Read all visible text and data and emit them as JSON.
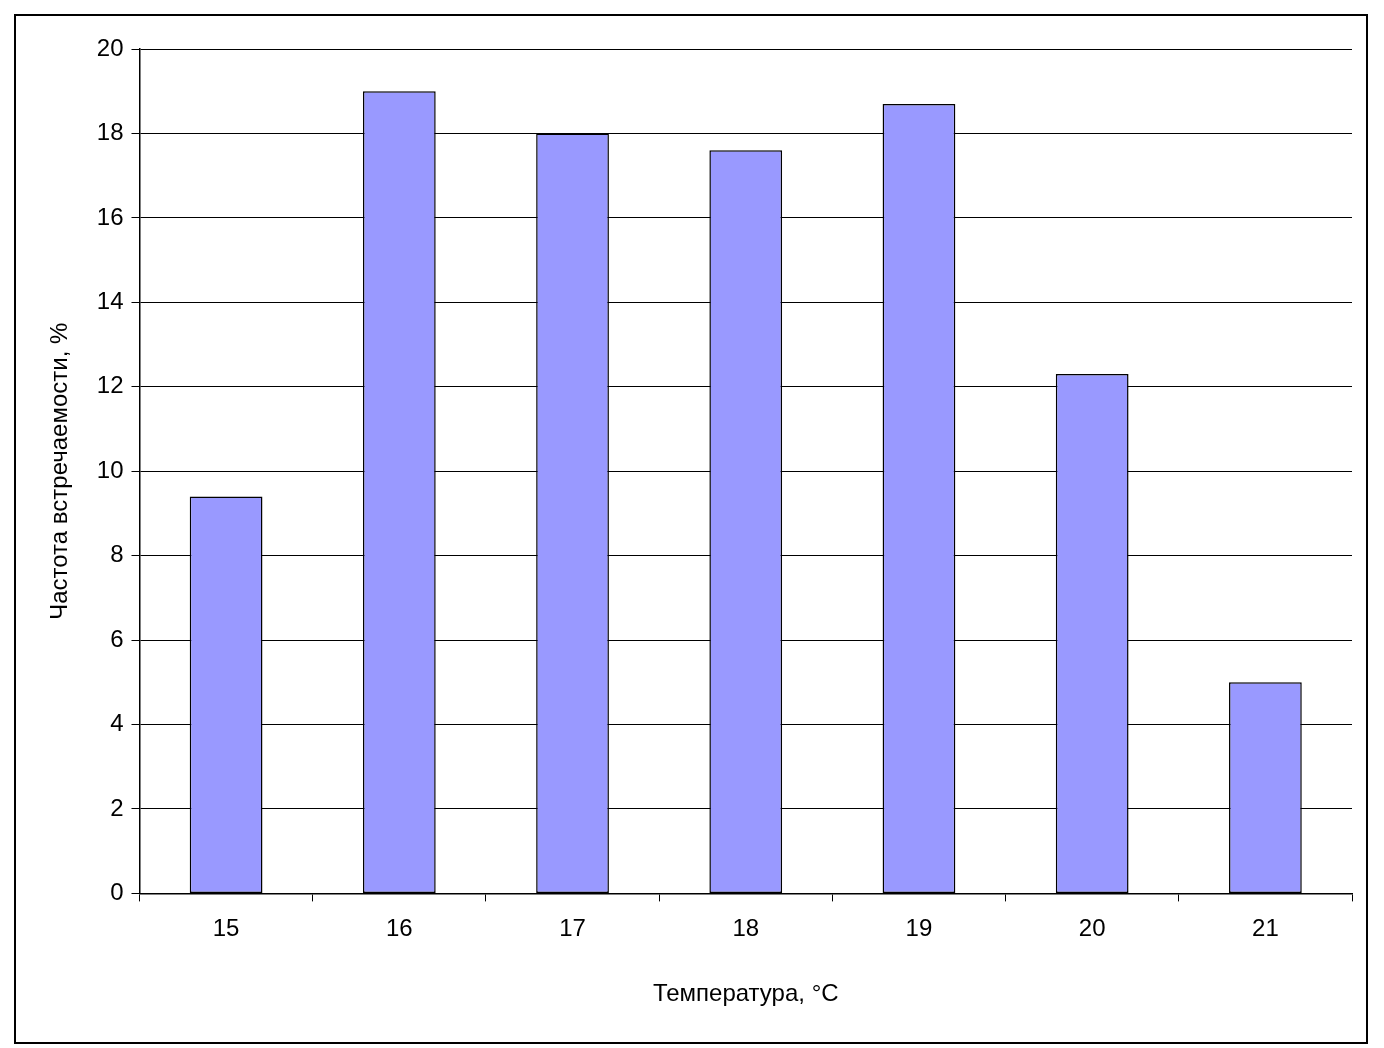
{
  "chart_data": {
    "type": "bar",
    "xlabel": "Температура, °C",
    "ylabel": "Частота встречаемости, %",
    "categories": [
      "15",
      "16",
      "17",
      "18",
      "19",
      "20",
      "21"
    ],
    "values": [
      9.4,
      19.0,
      18.0,
      17.6,
      18.7,
      12.3,
      5.0
    ],
    "color": "#9999ff",
    "ylim": [
      0,
      20
    ],
    "yticks": [
      0,
      2,
      4,
      6,
      8,
      10,
      12,
      14,
      16,
      18,
      20
    ],
    "grid": "y",
    "legend": false
  }
}
